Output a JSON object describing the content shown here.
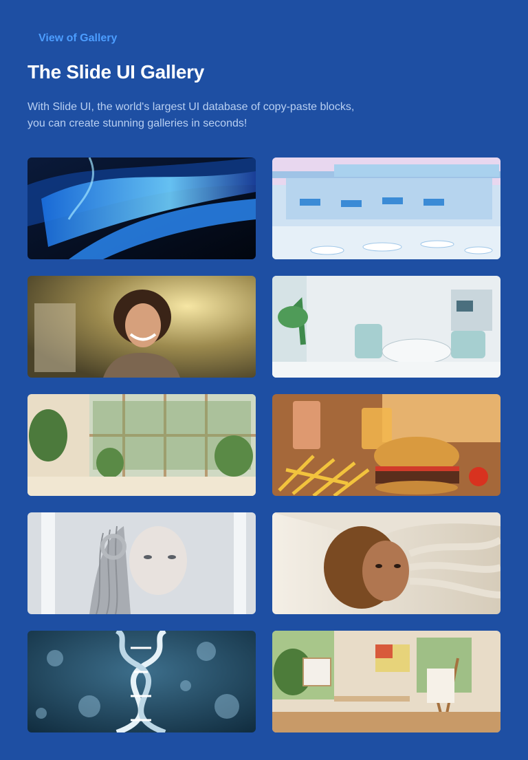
{
  "header": {
    "eyebrow": "View of Gallery",
    "title": "The Slide UI Gallery",
    "subtitle_line1": "With Slide UI, the world's largest UI database of copy-paste blocks,",
    "subtitle_line2": "you can create stunning galleries in seconds!"
  },
  "gallery": {
    "images": [
      {
        "subject": "abstract-blue-waves"
      },
      {
        "subject": "futuristic-laboratory"
      },
      {
        "subject": "smiling-curly-haired-man"
      },
      {
        "subject": "dental-clinic"
      },
      {
        "subject": "sunlit-room-with-plants"
      },
      {
        "subject": "burger-fries-and-drinks"
      },
      {
        "subject": "robot-woman"
      },
      {
        "subject": "woman-with-wind-swept-hair"
      },
      {
        "subject": "dna-helix"
      },
      {
        "subject": "artist-studio"
      }
    ]
  },
  "colors": {
    "background": "#1e4fa3",
    "accent": "#4c9dff",
    "title": "#ffffff",
    "subtitle": "#b9d0f2"
  }
}
